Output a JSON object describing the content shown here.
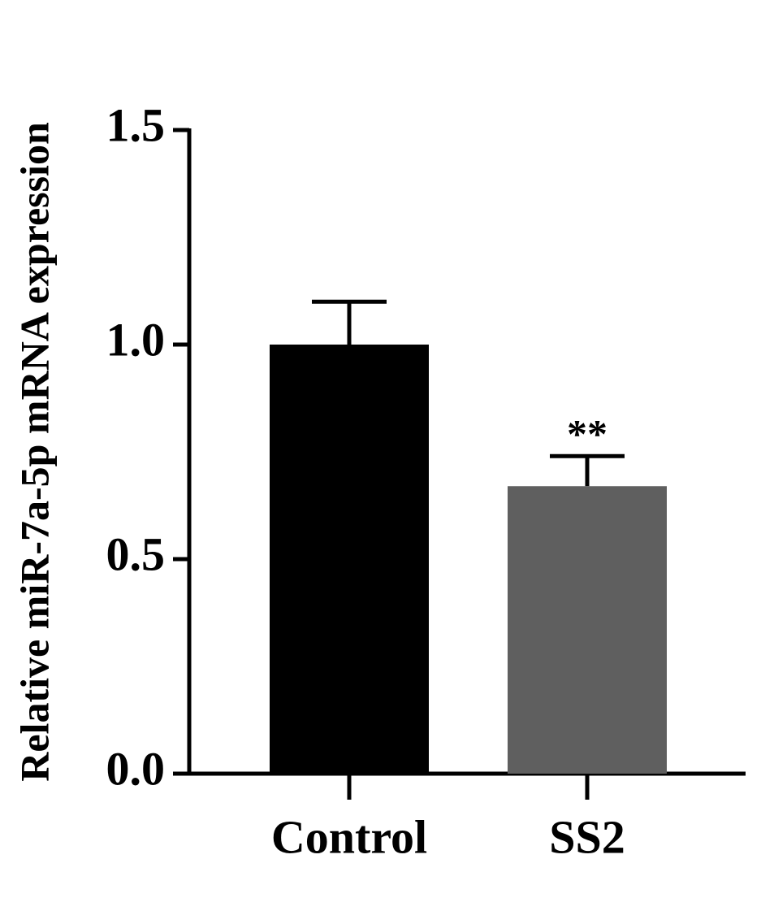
{
  "chart_data": {
    "type": "bar",
    "y_label": "Relative miR-7a-5p mRNA expression",
    "categories": [
      "Control",
      "SS2"
    ],
    "values": [
      1.0,
      0.67
    ],
    "errors": [
      0.1,
      0.07
    ],
    "significance_labels": [
      null,
      "**"
    ],
    "colors": [
      "#000000",
      "#5f5f5f"
    ],
    "ylim": [
      0,
      1.5
    ],
    "yticks": [
      {
        "value": 0,
        "label": "0.0"
      },
      0.5,
      {
        "value": 1,
        "label": "1.0"
      },
      1.5
    ],
    "grid": false
  }
}
